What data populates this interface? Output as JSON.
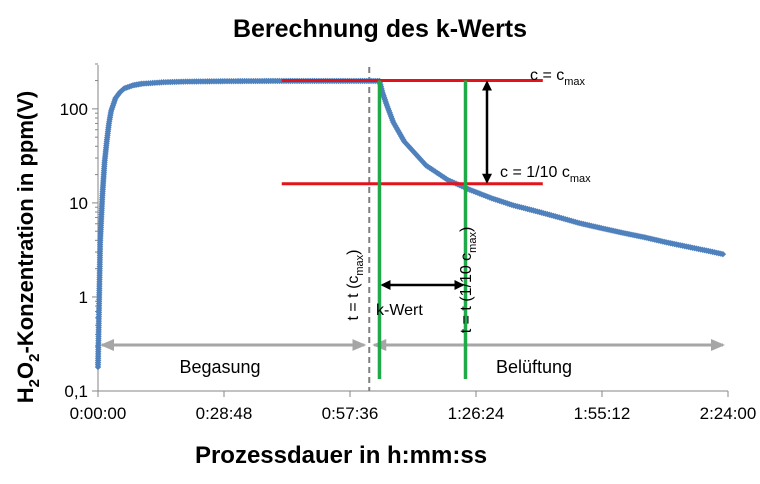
{
  "chart_data": {
    "type": "scatter",
    "title": "Berechnung des k-Werts",
    "xlabel": "Prozessdauer in h:mm:ss",
    "ylabel": {
      "parts": [
        "H",
        "2",
        "O",
        "2",
        "-Konzentration in ppm(V)"
      ]
    },
    "xlim_seconds": [
      0,
      8640
    ],
    "ylim": [
      0.1,
      300
    ],
    "yscale": "log",
    "x_ticks": [
      {
        "value": 0,
        "label": "0:00:00"
      },
      {
        "value": 1728,
        "label": "0:28:48"
      },
      {
        "value": 3456,
        "label": "0:57:36"
      },
      {
        "value": 5184,
        "label": "1:26:24"
      },
      {
        "value": 6912,
        "label": "1:55:12"
      },
      {
        "value": 8640,
        "label": "2:24:00"
      }
    ],
    "y_ticks": [
      {
        "value": 0.1,
        "label": "0,1"
      },
      {
        "value": 1,
        "label": "1"
      },
      {
        "value": 10,
        "label": "10"
      },
      {
        "value": 100,
        "label": "100"
      }
    ],
    "series": [
      {
        "color": "#4f81bd",
        "marker": "diamond",
        "x_seconds": [
          0,
          30,
          60,
          90,
          120,
          150,
          180,
          240,
          300,
          360,
          480,
          600,
          900,
          1200,
          1800,
          2400,
          3000,
          3600,
          3860,
          3900,
          3960,
          4050,
          4200,
          4500,
          4800,
          5100,
          5400,
          5700,
          6000,
          6300,
          6600,
          6900,
          7200,
          7500,
          7800,
          8100,
          8400,
          8570
        ],
        "y": [
          0.18,
          3.8,
          12,
          27,
          45,
          70,
          95,
          130,
          150,
          165,
          178,
          185,
          192,
          195,
          197,
          198,
          198,
          198,
          198,
          150,
          110,
          72,
          45,
          25,
          17.5,
          13.8,
          11.2,
          9.4,
          8.2,
          7.1,
          6.1,
          5.4,
          4.8,
          4.3,
          3.8,
          3.4,
          3.05,
          2.85
        ]
      }
    ],
    "reference_lines": {
      "c_max": 200,
      "c_tenth": 16,
      "line_x_start_seconds": 2520,
      "line_x_end_seconds": 6100,
      "t_cmax_seconds": 3860,
      "t_tenth_seconds": 5040,
      "dashed_x_seconds": 3720,
      "colors": {
        "cmax_lines": "#e3131b",
        "time_lines": "#1faa4a",
        "dashed": "#808080",
        "phase_arrows": "#a6a6a6"
      }
    },
    "annotations": {
      "cmax": {
        "base": "c = c",
        "sub": "max"
      },
      "ctenth": {
        "base": "c = 1/10 c",
        "sub": "max"
      },
      "t_cmax": {
        "base": "t = t (c",
        "sub": "max",
        "end": ")"
      },
      "t_tenth": {
        "base": "t = t (1/10 c",
        "sub": "max",
        "end": ")"
      },
      "kwert": "k-Wert",
      "phase1": "Begasung",
      "phase2": "Belüftung"
    },
    "grid": false,
    "legend": "none"
  }
}
